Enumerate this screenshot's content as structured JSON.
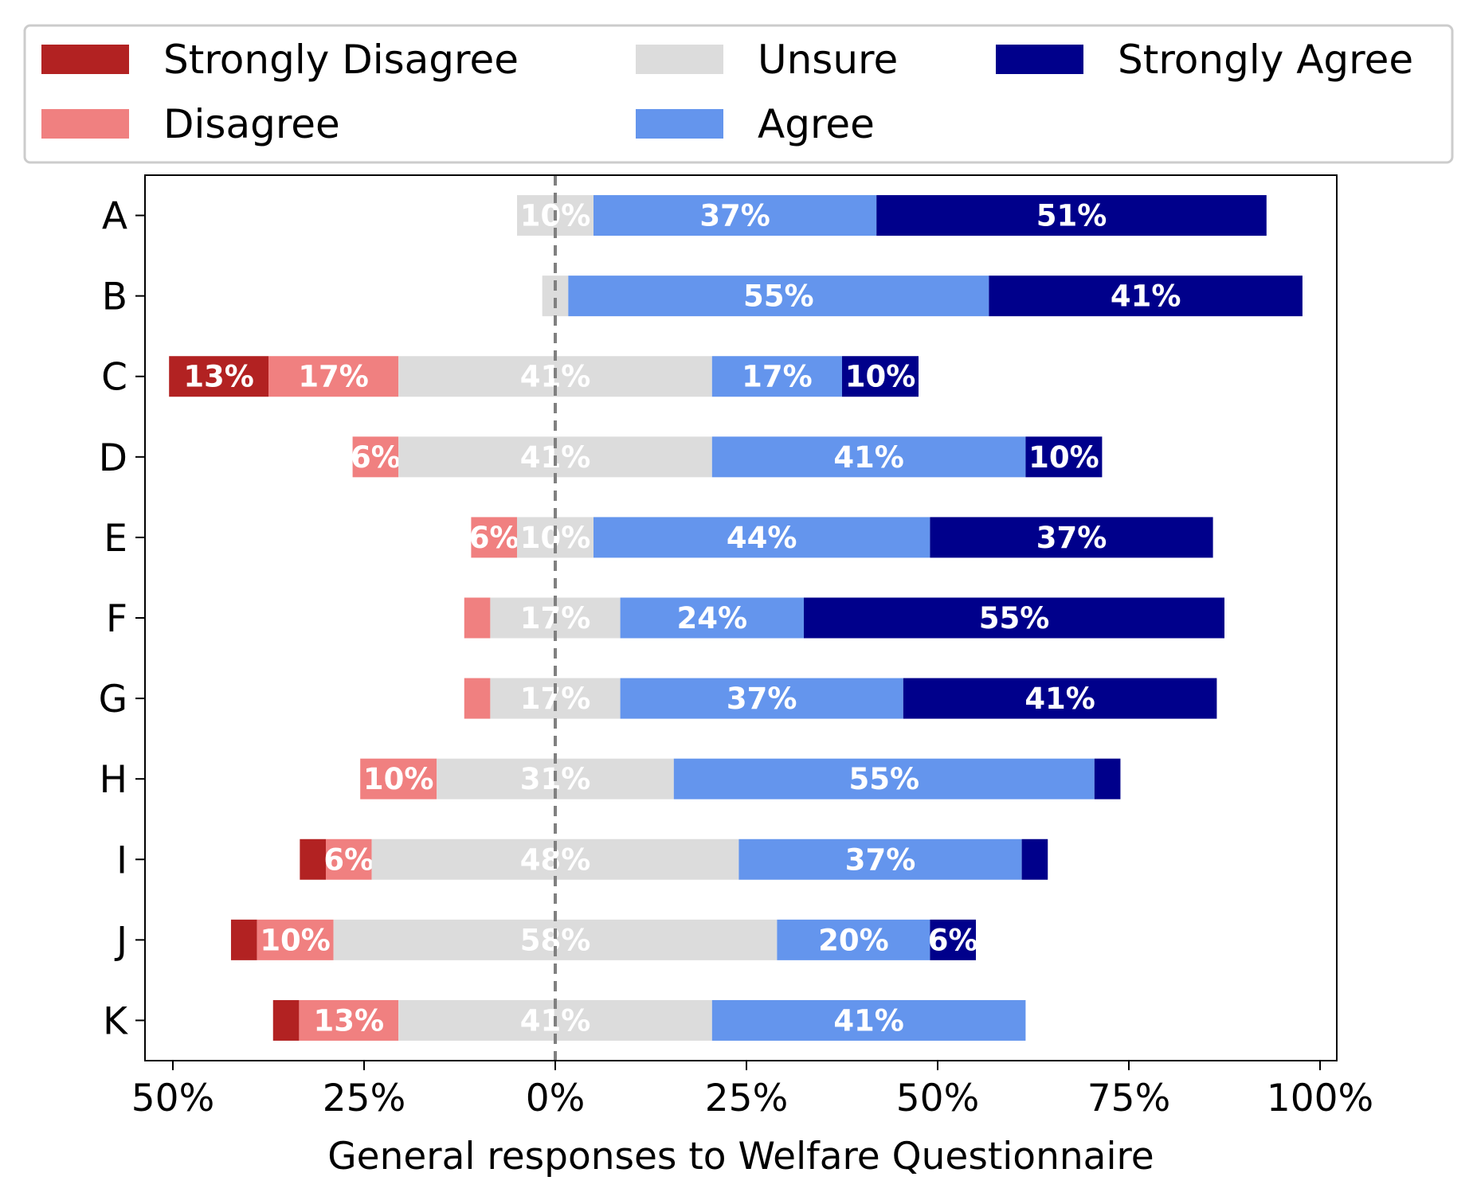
{
  "chart_data": {
    "type": "bar",
    "orientation": "horizontal",
    "stacked": "diverging",
    "xlabel": "General responses to Welfare Questionnaire",
    "categories": [
      "A",
      "B",
      "C",
      "D",
      "E",
      "F",
      "G",
      "H",
      "I",
      "J",
      "K"
    ],
    "xlim": [
      -50,
      100
    ],
    "xticks": [
      -50,
      -25,
      0,
      25,
      50,
      75,
      100
    ],
    "xtick_labels": [
      "50%",
      "25%",
      "0%",
      "25%",
      "50%",
      "75%",
      "100%"
    ],
    "legend_position": "top",
    "grid": false,
    "series": [
      {
        "name": "Strongly Disagree",
        "color": "#b22222",
        "values": [
          0,
          0,
          13,
          0,
          0,
          0,
          0,
          0,
          3.4,
          3.4,
          3.4
        ],
        "labels": [
          "",
          "",
          "13%",
          "",
          "",
          "",
          "",
          "",
          "",
          "",
          ""
        ]
      },
      {
        "name": "Disagree",
        "color": "#f08080",
        "values": [
          0,
          0,
          17,
          6,
          6,
          3.4,
          3.4,
          10,
          6,
          10,
          13
        ],
        "labels": [
          "",
          "",
          "17%",
          "6%",
          "6%",
          "",
          "",
          "10%",
          "6%",
          "10%",
          "13%"
        ]
      },
      {
        "name": "Unsure",
        "color": "#dcdcdc",
        "values": [
          10,
          3.4,
          41,
          41,
          10,
          17,
          17,
          31,
          48,
          58,
          41
        ],
        "labels": [
          "10%",
          "",
          "41%",
          "41%",
          "10%",
          "17%",
          "17%",
          "31%",
          "48%",
          "58%",
          "41%"
        ]
      },
      {
        "name": "Agree",
        "color": "#6495ed",
        "values": [
          37,
          55,
          17,
          41,
          44,
          24,
          37,
          55,
          37,
          20,
          41
        ],
        "labels": [
          "37%",
          "55%",
          "17%",
          "41%",
          "44%",
          "24%",
          "37%",
          "55%",
          "37%",
          "20%",
          "41%"
        ]
      },
      {
        "name": "Strongly Agree",
        "color": "#00008b",
        "values": [
          51,
          41,
          10,
          10,
          37,
          55,
          41,
          3.4,
          3.4,
          6,
          0
        ],
        "labels": [
          "51%",
          "41%",
          "10%",
          "10%",
          "37%",
          "55%",
          "41%",
          "",
          "",
          "6%",
          ""
        ]
      }
    ]
  }
}
